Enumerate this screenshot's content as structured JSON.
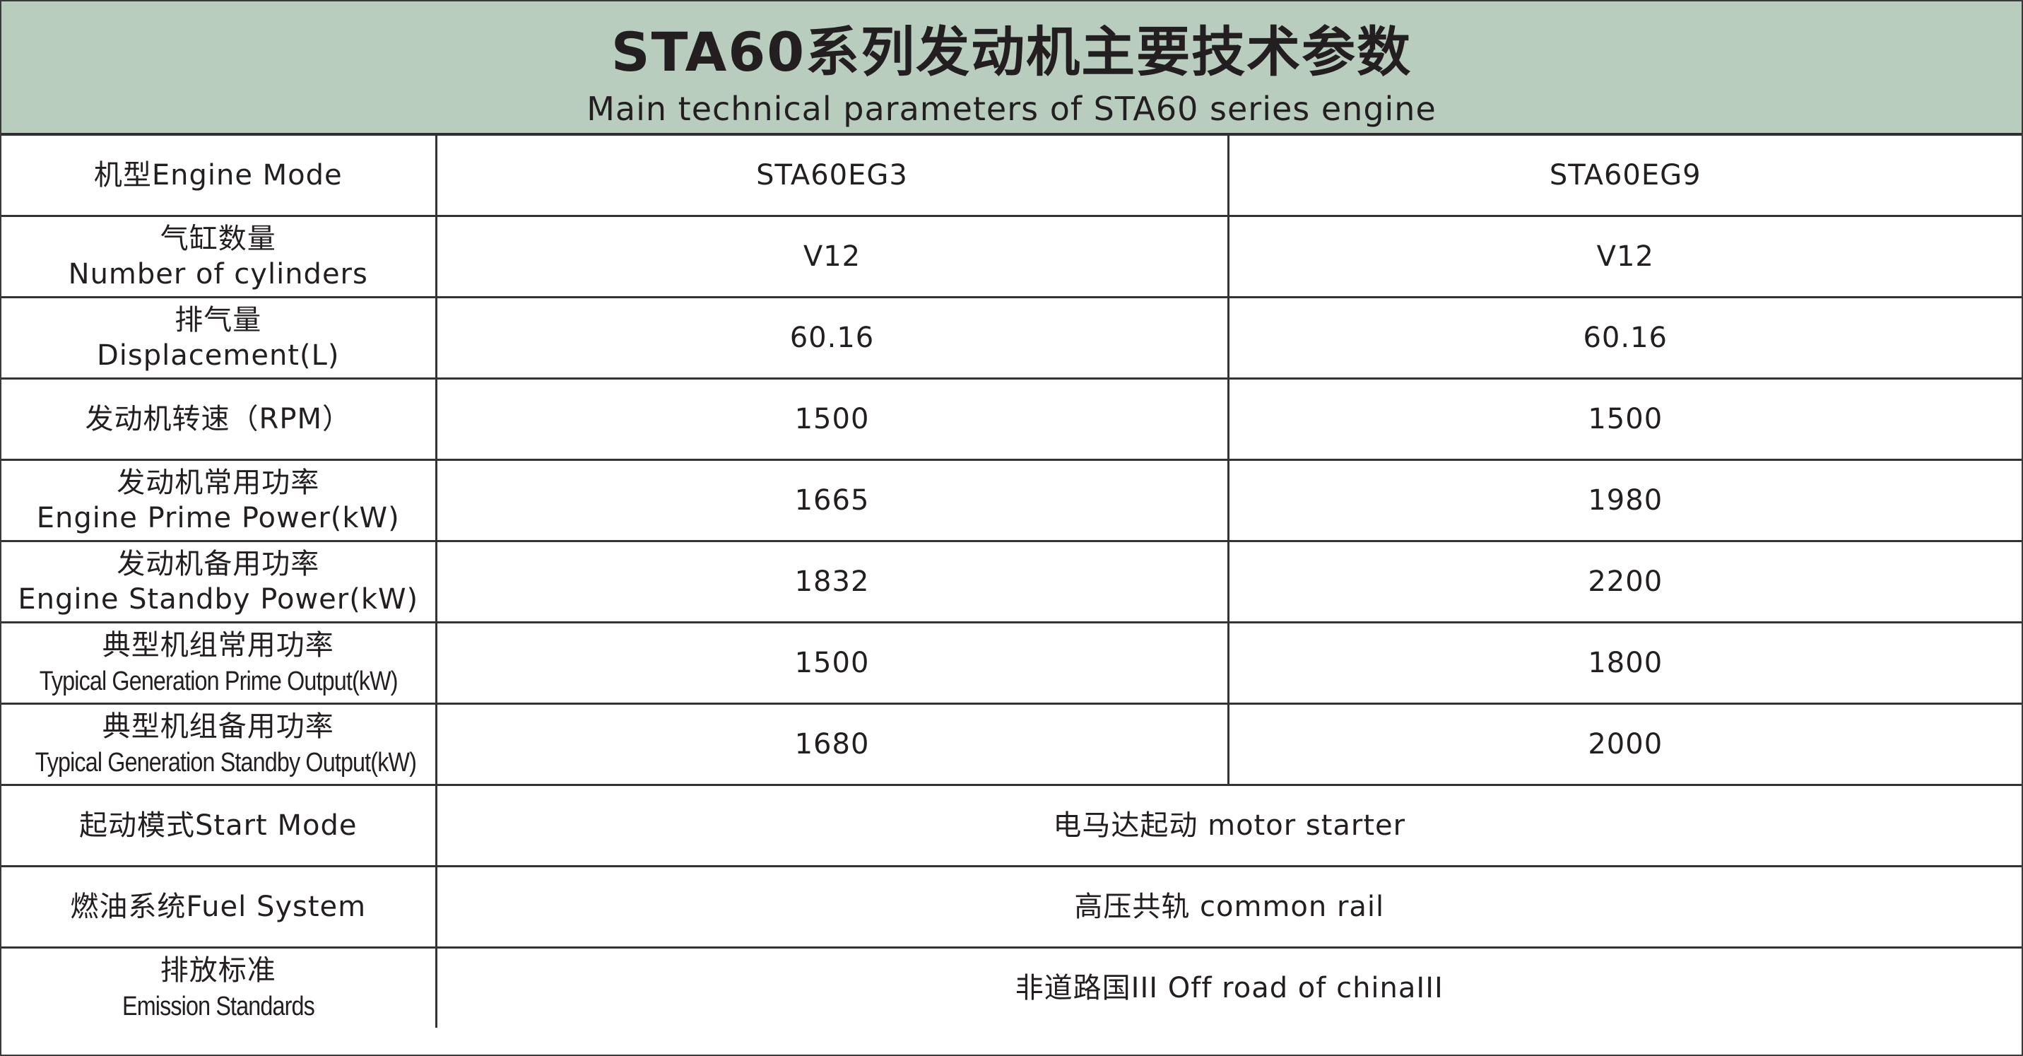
{
  "header": {
    "title": "STA60系列发动机主要技术参数",
    "subtitle": "Main technical parameters of STA60 series engine",
    "background_color": "#b9cdbf"
  },
  "rows": [
    {
      "label": [
        "机型Engine Mode"
      ],
      "values": [
        "STA60EG3",
        "STA60EG9"
      ]
    },
    {
      "label": [
        "气缸数量",
        "Number of cylinders"
      ],
      "values": [
        "V12",
        "V12"
      ]
    },
    {
      "label": [
        "排气量",
        "Displacement(L)"
      ],
      "values": [
        "60.16",
        "60.16"
      ]
    },
    {
      "label": [
        "发动机转速（RPM）"
      ],
      "values": [
        "1500",
        "1500"
      ]
    },
    {
      "label": [
        "发动机常用功率",
        "Engine Prime Power(kW)"
      ],
      "values": [
        "1665",
        "1980"
      ]
    },
    {
      "label": [
        "发动机备用功率",
        "Engine Standby Power(kW)"
      ],
      "values": [
        "1832",
        "2200"
      ]
    },
    {
      "label": [
        "典型机组常用功率",
        "Typical Generation Prime Output(kW)"
      ],
      "values": [
        "1500",
        "1800"
      ]
    },
    {
      "label": [
        "典型机组备用功率",
        "Typical Generation Standby Output(kW)"
      ],
      "values": [
        "1680",
        "2000"
      ]
    },
    {
      "label": [
        "起动模式Start Mode"
      ],
      "values": [
        "电马达起动 motor starter"
      ]
    },
    {
      "label": [
        "燃油系统Fuel System"
      ],
      "values": [
        "高压共轨 common rail"
      ]
    },
    {
      "label": [
        "排放标准",
        "Emission Standards"
      ],
      "values": [
        "非道路国III Off road of chinaIII"
      ]
    }
  ]
}
